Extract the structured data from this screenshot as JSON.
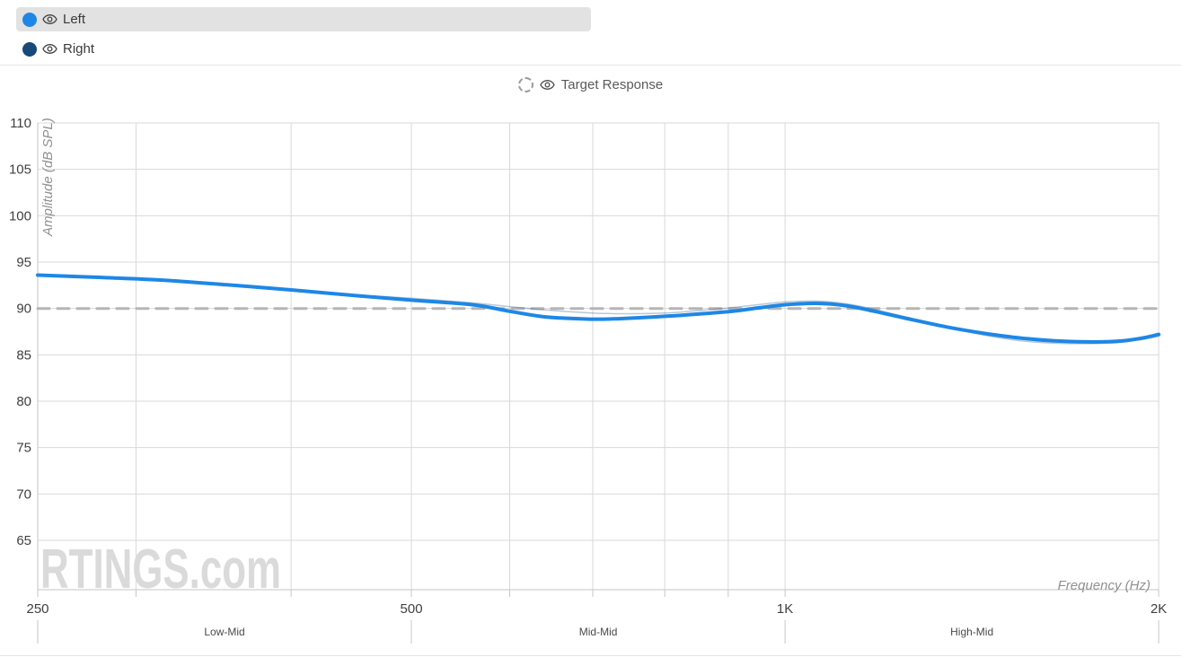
{
  "legend": {
    "left": {
      "label": "Left",
      "color": "#1e87e5"
    },
    "right": {
      "label": "Right",
      "color": "#17497b"
    },
    "target": {
      "label": "Target Response"
    }
  },
  "watermark": "RTINGS.com",
  "chart_data": {
    "type": "line",
    "xlabel": "Frequency (Hz)",
    "ylabel": "Amplitude (dB SPL)",
    "x_scale": "log",
    "xlim": [
      250,
      2000
    ],
    "ylim": [
      59.7,
      110
    ],
    "grid": true,
    "x_ticks": [
      {
        "value": 250,
        "label": "250"
      },
      {
        "value": 500,
        "label": "500"
      },
      {
        "value": 1000,
        "label": "1K"
      },
      {
        "value": 2000,
        "label": "2K"
      }
    ],
    "x_gridlines": [
      300,
      400,
      500,
      600,
      700,
      800,
      900,
      1000,
      2000
    ],
    "y_ticks": [
      110,
      105,
      100,
      95,
      90,
      85,
      80,
      75,
      70,
      65
    ],
    "x_axis_ranges": [
      {
        "label": "Low-Mid",
        "from": 250,
        "to": 500
      },
      {
        "label": "Mid-Mid",
        "from": 500,
        "to": 1000
      },
      {
        "label": "High-Mid",
        "from": 1000,
        "to": 2000
      }
    ],
    "series": [
      {
        "name": "Left",
        "color": "#1e87e5",
        "width": 4,
        "opacity": 1,
        "dash": null,
        "points": [
          [
            250,
            93.6
          ],
          [
            280,
            93.35
          ],
          [
            315,
            93.05
          ],
          [
            355,
            92.55
          ],
          [
            400,
            92.0
          ],
          [
            450,
            91.4
          ],
          [
            500,
            90.9
          ],
          [
            560,
            90.4
          ],
          [
            600,
            89.7
          ],
          [
            640,
            89.1
          ],
          [
            680,
            88.9
          ],
          [
            720,
            88.85
          ],
          [
            800,
            89.15
          ],
          [
            900,
            89.65
          ],
          [
            950,
            90.05
          ],
          [
            1000,
            90.4
          ],
          [
            1060,
            90.55
          ],
          [
            1120,
            90.3
          ],
          [
            1180,
            89.7
          ],
          [
            1250,
            88.95
          ],
          [
            1350,
            88.0
          ],
          [
            1450,
            87.3
          ],
          [
            1550,
            86.8
          ],
          [
            1650,
            86.5
          ],
          [
            1750,
            86.4
          ],
          [
            1850,
            86.45
          ],
          [
            1930,
            86.75
          ],
          [
            2000,
            87.2
          ]
        ]
      },
      {
        "name": "Right",
        "color": "#17497b",
        "width": 1.5,
        "opacity": 0.3,
        "dash": null,
        "points": [
          [
            250,
            93.55
          ],
          [
            280,
            93.3
          ],
          [
            315,
            93.0
          ],
          [
            355,
            92.5
          ],
          [
            400,
            91.95
          ],
          [
            450,
            91.45
          ],
          [
            500,
            91.1
          ],
          [
            560,
            90.6
          ],
          [
            600,
            90.2
          ],
          [
            640,
            89.85
          ],
          [
            680,
            89.6
          ],
          [
            720,
            89.45
          ],
          [
            800,
            89.5
          ],
          [
            900,
            90.05
          ],
          [
            950,
            90.4
          ],
          [
            1000,
            90.7
          ],
          [
            1060,
            90.8
          ],
          [
            1120,
            90.5
          ],
          [
            1180,
            89.9
          ],
          [
            1250,
            89.1
          ],
          [
            1350,
            88.0
          ],
          [
            1450,
            87.1
          ],
          [
            1550,
            86.5
          ],
          [
            1650,
            86.25
          ],
          [
            1750,
            86.2
          ],
          [
            1850,
            86.3
          ],
          [
            1930,
            86.6
          ],
          [
            2000,
            87.0
          ]
        ]
      },
      {
        "name": "Target Response",
        "color": "#b5b5b5",
        "width": 3,
        "opacity": 1,
        "dash": "13 9",
        "points": [
          [
            250,
            90
          ],
          [
            2000,
            90
          ]
        ]
      }
    ]
  }
}
